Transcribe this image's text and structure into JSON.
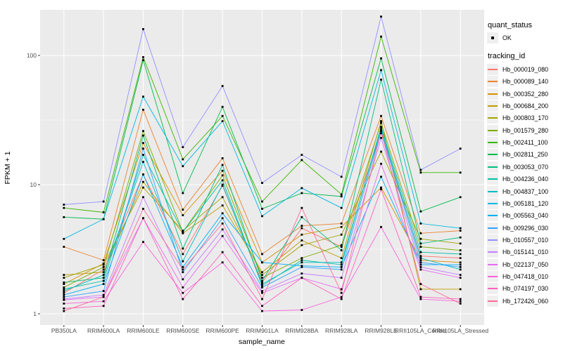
{
  "chart_data": {
    "type": "line",
    "title": "",
    "xlabel": "sample_name",
    "ylabel": "FPKM + 1",
    "y_scale": "log10",
    "y_ticks": [
      1,
      10,
      100
    ],
    "y_tick_labels": [
      "1",
      "10",
      "100"
    ],
    "ylim": [
      0.82,
      225
    ],
    "grid": "on",
    "legend_position": "right",
    "panel_bg": "#EBEBEB",
    "gridline_color": "#FFFFFF",
    "point_color": "#000000",
    "categories": [
      "PB350LA",
      "RRIM600LA",
      "RRIM600LE",
      "RRIM600SE",
      "RRIM600PE",
      "RRIM901LA",
      "RRIM928BA",
      "RRIM928LA",
      "RRIM928LE",
      "RRII105LA_Control",
      "RRII105LA_Stressed"
    ],
    "series": [
      {
        "name": "Hb_000019_080",
        "color": "#F8766D",
        "values": [
          1.45,
          2.2,
          12,
          2.9,
          9.8,
          1.75,
          4.6,
          3.3,
          25,
          2.8,
          2.7
        ]
      },
      {
        "name": "Hb_000089_140",
        "color": "#EA8331",
        "values": [
          3.3,
          2.6,
          38,
          6.4,
          16,
          2.9,
          4.8,
          5.0,
          34,
          4.2,
          4.4
        ]
      },
      {
        "name": "Hb_000352_280",
        "color": "#D89000",
        "values": [
          1.7,
          2.45,
          21,
          5.8,
          12.8,
          2.5,
          4.1,
          4.7,
          9.5,
          2.6,
          2.5
        ]
      },
      {
        "name": "Hb_000684_200",
        "color": "#C09B00",
        "values": [
          2.0,
          2.1,
          10.5,
          4.2,
          6.9,
          2.1,
          3.7,
          2.7,
          31,
          1.55,
          1.55
        ]
      },
      {
        "name": "Hb_000803_170",
        "color": "#A3A500",
        "values": [
          1.9,
          2.4,
          9.5,
          4.4,
          8.0,
          2.0,
          3.4,
          4.1,
          18,
          3.8,
          3.5
        ]
      },
      {
        "name": "Hb_001579_280",
        "color": "#7CAE00",
        "values": [
          1.6,
          2.3,
          26,
          4.3,
          11.8,
          1.9,
          2.7,
          3.4,
          30,
          3.3,
          3.1
        ]
      },
      {
        "name": "Hb_002411_100",
        "color": "#39B600",
        "values": [
          6.6,
          6.1,
          97,
          15.7,
          34,
          7.4,
          15.5,
          8.4,
          140,
          12.4,
          12.4
        ]
      },
      {
        "name": "Hb_002811_250",
        "color": "#00BB4E",
        "values": [
          5.6,
          5.4,
          92,
          8.6,
          40,
          6.5,
          8.6,
          8.1,
          95,
          6.2,
          8.0
        ]
      },
      {
        "name": "Hb_003053_070",
        "color": "#00BF7D",
        "values": [
          1.75,
          1.9,
          24,
          3.2,
          14.2,
          1.8,
          5.6,
          3.1,
          65,
          3.5,
          3.9
        ]
      },
      {
        "name": "Hb_004236_040",
        "color": "#00C1A3",
        "values": [
          1.55,
          1.8,
          17,
          4.3,
          10.8,
          1.65,
          2.6,
          2.4,
          28,
          3.0,
          2.9
        ]
      },
      {
        "name": "Hb_004837_100",
        "color": "#00BFC4",
        "values": [
          1.5,
          2.0,
          15,
          2.55,
          10.0,
          1.7,
          2.5,
          2.5,
          27,
          2.7,
          2.2
        ]
      },
      {
        "name": "Hb_005181_120",
        "color": "#00BAE0",
        "values": [
          3.8,
          5.4,
          48,
          13.9,
          31,
          5.7,
          9.4,
          6.6,
          77,
          5.0,
          4.6
        ]
      },
      {
        "name": "Hb_005563_040",
        "color": "#00B0F6",
        "values": [
          1.4,
          1.7,
          12,
          2.3,
          6.0,
          2.5,
          2.35,
          2.3,
          11.5,
          2.4,
          2.4
        ]
      },
      {
        "name": "Hb_009296_030",
        "color": "#35A2FF",
        "values": [
          1.35,
          1.5,
          19,
          2.1,
          5.5,
          1.6,
          2.3,
          2.2,
          26,
          2.5,
          2.3
        ]
      },
      {
        "name": "Hb_010557_010",
        "color": "#9590FF",
        "values": [
          7.0,
          7.4,
          160,
          19.5,
          58,
          10.3,
          17,
          11.5,
          200,
          13,
          19
        ]
      },
      {
        "name": "Hb_015141_010",
        "color": "#C77CFF",
        "values": [
          1.3,
          1.4,
          8.0,
          1.85,
          4.5,
          1.5,
          2.05,
          1.9,
          23,
          2.3,
          2.0
        ]
      },
      {
        "name": "Hb_022137_050",
        "color": "#E76BF3",
        "values": [
          1.28,
          1.35,
          5.5,
          1.6,
          4.0,
          1.45,
          1.9,
          1.55,
          14.5,
          2.2,
          1.9
        ]
      },
      {
        "name": "Hb_047418_010",
        "color": "#FA62DB",
        "values": [
          1.2,
          1.25,
          3.6,
          1.45,
          2.5,
          1.05,
          1.07,
          1.35,
          4.7,
          1.3,
          1.25
        ]
      },
      {
        "name": "Hb_074197_030",
        "color": "#FF62BC",
        "values": [
          1.1,
          1.15,
          5.5,
          1.3,
          3.0,
          1.15,
          1.9,
          1.3,
          9.2,
          1.35,
          1.3
        ]
      },
      {
        "name": "Hb_172426_060",
        "color": "#FF6A98",
        "values": [
          1.05,
          1.35,
          6.5,
          2.2,
          5.0,
          1.3,
          6.6,
          1.45,
          26,
          1.7,
          1.2
        ]
      }
    ]
  },
  "legend": {
    "quant_title": "quant_status",
    "quant_items": [
      {
        "label": "OK",
        "symbol": "black-point"
      }
    ],
    "tracking_title": "tracking_id"
  }
}
